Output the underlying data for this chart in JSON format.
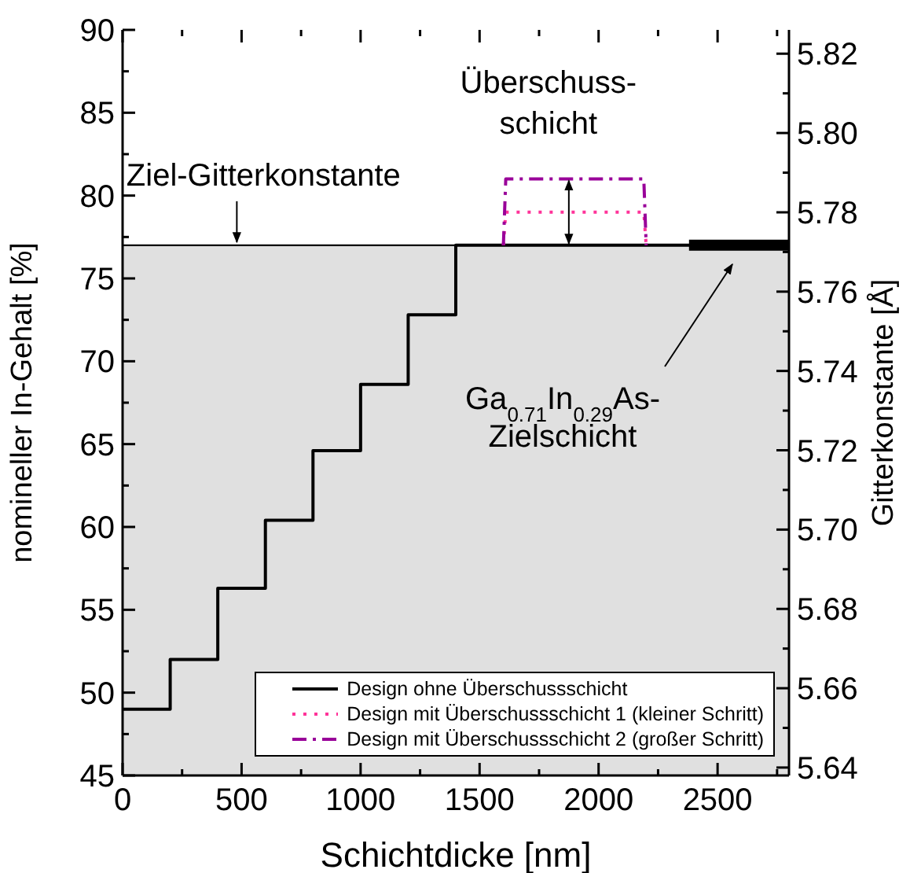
{
  "chart_data": {
    "type": "line",
    "xlabel": "Schichtdicke [nm]",
    "ylabel": "nomineller In-Gehalt [%]",
    "y2label": "Gitterkonstante [Å]",
    "xlim": [
      0,
      2800
    ],
    "ylim": [
      45,
      90
    ],
    "y2lim": [
      5.638,
      5.826
    ],
    "xticks": [
      0,
      {
        "value": 250,
        "label": null
      },
      500,
      {
        "value": 750,
        "label": null
      },
      1000,
      {
        "value": 1250,
        "label": null
      },
      1500,
      {
        "value": 1750,
        "label": null
      },
      2000,
      {
        "value": 2250,
        "label": null
      },
      2500,
      {
        "value": 2750,
        "label": null
      }
    ],
    "yticks": [
      45,
      {
        "value": 47.5,
        "label": null
      },
      50,
      {
        "value": 52.5,
        "label": null
      },
      55,
      {
        "value": 57.5,
        "label": null
      },
      60,
      {
        "value": 62.5,
        "label": null
      },
      65,
      {
        "value": 67.5,
        "label": null
      },
      70,
      {
        "value": 72.5,
        "label": null
      },
      75,
      {
        "value": 77.5,
        "label": null
      },
      80,
      {
        "value": 82.5,
        "label": null
      },
      85,
      {
        "value": 87.5,
        "label": null
      },
      90
    ],
    "y2ticks": [
      5.64,
      {
        "value": 5.65,
        "label": null
      },
      5.66,
      {
        "value": 5.67,
        "label": null
      },
      5.68,
      {
        "value": 5.69,
        "label": null
      },
      {
        "value": 5.7,
        "label": "5.70"
      },
      {
        "value": 5.71,
        "label": null
      },
      5.72,
      {
        "value": 5.73,
        "label": null
      },
      5.74,
      {
        "value": 5.75,
        "label": null
      },
      5.76,
      {
        "value": 5.77,
        "label": null
      },
      5.78,
      {
        "value": 5.79,
        "label": null
      },
      {
        "value": 5.8,
        "label": "5.80"
      },
      {
        "value": 5.81,
        "label": null
      },
      5.82
    ],
    "series": [
      {
        "name": "Design ohne Überschussschicht",
        "type": "step",
        "color": "#000000",
        "line_style": "solid",
        "x": [
          0,
          200,
          400,
          600,
          800,
          1000,
          1200,
          1400,
          2800
        ],
        "values": [
          49,
          52,
          56.3,
          60.4,
          64.6,
          68.6,
          72.8,
          77,
          77
        ]
      },
      {
        "name": "Design mit Überschussschicht 1 (kleiner Schritt)",
        "color": "#ff3399",
        "line_style": "dotted",
        "x": [
          1600,
          1610,
          2190,
          2200
        ],
        "values": [
          77,
          79,
          79,
          77
        ]
      },
      {
        "name": "Design mit Überschussschicht 2 (großer Schritt)",
        "color": "#990099",
        "line_style": "dashed",
        "x": [
          1600,
          1610,
          2190,
          2200
        ],
        "values": [
          77,
          81,
          81,
          77
        ]
      },
      {
        "color": "#000000",
        "line_style": "solid",
        "x": [
          2380,
          2800
        ],
        "values": [
          77,
          77
        ]
      }
    ],
    "bands": [
      {
        "axis": "y",
        "from": 45,
        "to": 77,
        "color": "#e0e0e0"
      }
    ],
    "ref_lines": [
      {
        "axis": "y",
        "value": 77,
        "color": "#000000"
      }
    ],
    "annotations": [
      {
        "text": "Ziel-Gitterkonstante",
        "x": 480,
        "y": 77
      },
      {
        "text": "Überschuss-\nschicht",
        "x": 1875,
        "y": 81
      },
      "Ga$_{0.71}$In$_{0.29}$As-\nZielschicht"
    ],
    "legend": "bottom right"
  }
}
